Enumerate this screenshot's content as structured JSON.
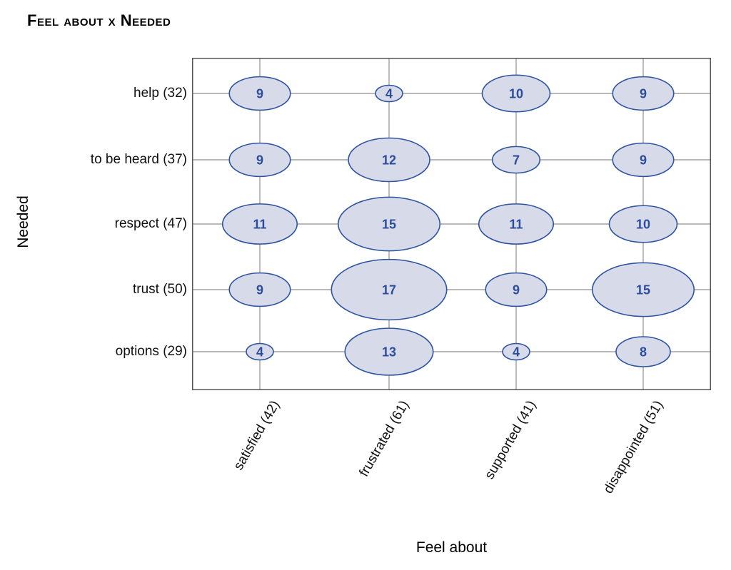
{
  "chart_data": {
    "type": "scatter",
    "variant": "balloon-plot (bubble matrix, ellipse width proportional to count)",
    "title": "Feel about x Needed",
    "xlabel": "Feel about",
    "ylabel": "Needed",
    "x_categories": [
      "satisfied (42)",
      "frustrated (61)",
      "supported (41)",
      "disappointed (51)"
    ],
    "y_categories": [
      "help (32)",
      "to be heard (37)",
      "respect (47)",
      "trust (50)",
      "options (29)"
    ],
    "x_totals": [
      42,
      61,
      41,
      51
    ],
    "y_totals": [
      32,
      37,
      47,
      50,
      29
    ],
    "values": [
      [
        9,
        4,
        10,
        9
      ],
      [
        9,
        12,
        7,
        9
      ],
      [
        11,
        15,
        11,
        10
      ],
      [
        9,
        17,
        9,
        15
      ],
      [
        4,
        13,
        4,
        8
      ]
    ],
    "legend": "none",
    "grid": "on",
    "colors": {
      "bubble_fill": "#d7dbe9",
      "bubble_stroke": "#2e53a0",
      "value_text": "#2c4c9c",
      "gridline": "#8f8f8f",
      "plot_border": "#565656",
      "label_text": "#111111",
      "background": "#ffffff"
    }
  }
}
